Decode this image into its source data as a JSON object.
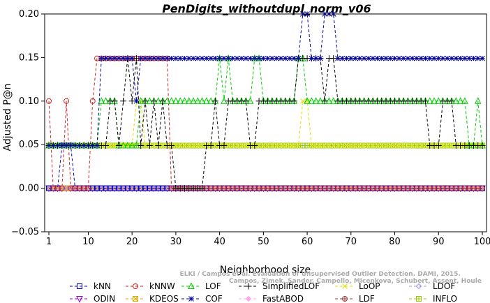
{
  "chart_data": {
    "type": "line",
    "title": "PenDigits_withoutdupl_norm_v06",
    "xlabel": "Neighborhood size",
    "ylabel": "Adjusted P@n",
    "xlim": [
      1,
      100
    ],
    "ylim": [
      -0.05,
      0.2
    ],
    "x_ticks": [
      1,
      10,
      20,
      30,
      40,
      50,
      60,
      70,
      80,
      90,
      100
    ],
    "y_ticks": [
      -0.05,
      0.0,
      0.05,
      0.1,
      0.15,
      0.2
    ],
    "y_tick_labels": [
      "−0.05",
      "0.00",
      "0.05",
      "0.10",
      "0.15",
      "0.20"
    ],
    "grid": false,
    "legend_position": "bottom",
    "watermark": "ELKI / Campos et al. Evaluation of Unsupervised Outlier Detection. DAMI, 2015. Campos, Zimek, Sander, Campello, Micenkova, Schubert, Assent, Houle",
    "series": [
      {
        "name": "kNN",
        "color": "#0000cc",
        "marker": "square",
        "segments": [
          [
            1,
            0.0
          ],
          [
            2,
            0.0
          ],
          [
            3,
            0.0
          ],
          [
            4,
            0.049
          ],
          [
            5,
            0.049
          ],
          [
            6,
            0.049
          ],
          [
            7,
            0.0
          ],
          [
            8,
            0.0
          ],
          [
            100,
            0.0
          ]
        ]
      },
      {
        "name": "kNNW",
        "color": "#cc2222",
        "marker": "circle",
        "segments": [
          [
            1,
            0.1
          ],
          [
            2,
            0.0
          ],
          [
            3,
            0.0
          ],
          [
            4,
            0.0
          ],
          [
            5,
            0.1
          ],
          [
            6,
            0.0
          ],
          [
            7,
            0.0
          ],
          [
            8,
            0.0
          ],
          [
            9,
            0.0
          ],
          [
            10,
            0.0
          ],
          [
            11,
            0.1
          ],
          [
            12,
            0.149
          ],
          [
            13,
            0.149
          ],
          [
            20,
            0.149
          ],
          [
            21,
            0.149
          ],
          [
            22,
            0.149
          ],
          [
            23,
            0.149
          ],
          [
            28,
            0.149
          ],
          [
            29,
            0.0
          ],
          [
            30,
            0.0
          ],
          [
            31,
            0.0
          ],
          [
            100,
            0.0
          ]
        ]
      },
      {
        "name": "LOF",
        "color": "#00cc00",
        "marker": "triangle-up",
        "segments": [
          [
            1,
            0.049
          ],
          [
            12,
            0.049
          ],
          [
            13,
            0.1
          ],
          [
            16,
            0.1
          ],
          [
            17,
            0.049
          ],
          [
            18,
            0.049
          ],
          [
            19,
            0.049
          ],
          [
            20,
            0.049
          ],
          [
            21,
            0.049
          ],
          [
            22,
            0.1
          ],
          [
            36,
            0.1
          ],
          [
            37,
            0.1
          ],
          [
            38,
            0.1
          ],
          [
            39,
            0.1
          ],
          [
            40,
            0.149
          ],
          [
            41,
            0.1
          ],
          [
            42,
            0.149
          ],
          [
            43,
            0.1
          ],
          [
            47,
            0.1
          ],
          [
            48,
            0.149
          ],
          [
            49,
            0.149
          ],
          [
            50,
            0.1
          ],
          [
            57,
            0.1
          ],
          [
            58,
            0.149
          ],
          [
            59,
            0.149
          ],
          [
            60,
            0.1
          ],
          [
            91,
            0.1
          ],
          [
            92,
            0.1
          ],
          [
            96,
            0.1
          ],
          [
            97,
            0.049
          ],
          [
            98,
            0.049
          ],
          [
            99,
            0.1
          ],
          [
            100,
            0.049
          ]
        ]
      },
      {
        "name": "SimplifiedLOF",
        "color": "#000000",
        "marker": "plus",
        "segments": [
          [
            1,
            0.049
          ],
          [
            2,
            0.049
          ],
          [
            3,
            0.049
          ],
          [
            12,
            0.049
          ],
          [
            13,
            0.049
          ],
          [
            14,
            0.049
          ],
          [
            15,
            0.1
          ],
          [
            16,
            0.1
          ],
          [
            17,
            0.049
          ],
          [
            18,
            0.1
          ],
          [
            19,
            0.149
          ],
          [
            20,
            0.1
          ],
          [
            21,
            0.149
          ],
          [
            22,
            0.049
          ],
          [
            23,
            0.1
          ],
          [
            24,
            0.049
          ],
          [
            25,
            0.1
          ],
          [
            26,
            0.049
          ],
          [
            27,
            0.1
          ],
          [
            28,
            0.049
          ],
          [
            29,
            0.049
          ],
          [
            30,
            0.0
          ],
          [
            35,
            0.0
          ],
          [
            36,
            0.0
          ],
          [
            37,
            0.049
          ],
          [
            38,
            0.049
          ],
          [
            39,
            0.1
          ],
          [
            40,
            0.049
          ],
          [
            41,
            0.049
          ],
          [
            42,
            0.1
          ],
          [
            46,
            0.1
          ],
          [
            47,
            0.049
          ],
          [
            48,
            0.049
          ],
          [
            49,
            0.1
          ],
          [
            55,
            0.1
          ],
          [
            56,
            0.1
          ],
          [
            57,
            0.1
          ],
          [
            58,
            0.149
          ],
          [
            59,
            0.149
          ],
          [
            60,
            0.149
          ],
          [
            61,
            0.149
          ],
          [
            62,
            0.149
          ],
          [
            63,
            0.149
          ],
          [
            64,
            0.1
          ],
          [
            65,
            0.149
          ],
          [
            66,
            0.149
          ],
          [
            67,
            0.1
          ],
          [
            87,
            0.1
          ],
          [
            88,
            0.049
          ],
          [
            89,
            0.049
          ],
          [
            90,
            0.049
          ],
          [
            91,
            0.1
          ],
          [
            93,
            0.1
          ],
          [
            94,
            0.049
          ],
          [
            95,
            0.049
          ],
          [
            96,
            0.049
          ],
          [
            97,
            0.049
          ],
          [
            98,
            0.049
          ],
          [
            99,
            0.049
          ],
          [
            100,
            0.049
          ]
        ]
      },
      {
        "name": "LoOP",
        "color": "#dddd00",
        "marker": "x",
        "segments": [
          [
            1,
            0.049
          ],
          [
            20,
            0.049
          ],
          [
            21,
            0.1
          ],
          [
            22,
            0.1
          ],
          [
            23,
            0.049
          ],
          [
            57,
            0.049
          ],
          [
            58,
            0.049
          ],
          [
            59,
            0.1
          ],
          [
            60,
            0.1
          ],
          [
            61,
            0.049
          ],
          [
            100,
            0.049
          ]
        ]
      },
      {
        "name": "LDOF",
        "color": "#9999ee",
        "marker": "diamond",
        "segments": [
          [
            1,
            0.0
          ],
          [
            100,
            0.0
          ]
        ]
      },
      {
        "name": "ODIN",
        "color": "#9900cc",
        "marker": "triangle-down",
        "segments": [
          [
            1,
            0.0
          ],
          [
            100,
            0.0
          ]
        ]
      },
      {
        "name": "KDEOS",
        "color": "#ddaa00",
        "marker": "square-x",
        "segments": [
          [
            1,
            0.0
          ],
          [
            100,
            0.0
          ]
        ]
      },
      {
        "name": "COF",
        "color": "#000099",
        "marker": "asterisk",
        "segments": [
          [
            1,
            0.049
          ],
          [
            12,
            0.049
          ],
          [
            13,
            0.149
          ],
          [
            20,
            0.149
          ],
          [
            21,
            0.1
          ],
          [
            22,
            0.149
          ],
          [
            58,
            0.149
          ],
          [
            59,
            0.2
          ],
          [
            60,
            0.2
          ],
          [
            61,
            0.149
          ],
          [
            63,
            0.149
          ],
          [
            64,
            0.2
          ],
          [
            65,
            0.2
          ],
          [
            66,
            0.2
          ],
          [
            67,
            0.149
          ],
          [
            76,
            0.149
          ],
          [
            77,
            0.149
          ],
          [
            78,
            0.149
          ],
          [
            100,
            0.149
          ]
        ]
      },
      {
        "name": "FastABOD",
        "color": "#ffaaee",
        "marker": "diamond-filled",
        "segments": [
          [
            1,
            0.0
          ],
          [
            100,
            0.0
          ]
        ]
      },
      {
        "name": "LDF",
        "color": "#993333",
        "marker": "circle-plus",
        "segments": [
          [
            1,
            0.0
          ],
          [
            100,
            0.0
          ]
        ]
      },
      {
        "name": "INFLO",
        "color": "#99cc00",
        "marker": "square-star",
        "segments": [
          [
            1,
            0.049
          ],
          [
            13,
            0.049
          ],
          [
            100,
            0.049
          ]
        ]
      }
    ]
  }
}
